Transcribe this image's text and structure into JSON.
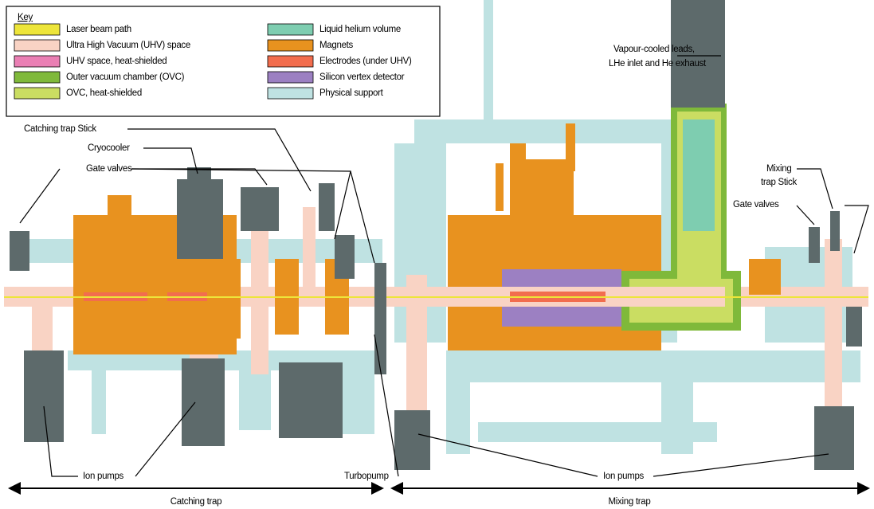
{
  "key": {
    "title": "Key",
    "items": [
      {
        "label": "Laser beam path",
        "color": "#ede53a"
      },
      {
        "label": "Ultra High Vacuum (UHV) space",
        "color": "#f9d3c4"
      },
      {
        "label": "UHV space, heat-shielded",
        "color": "#ea7fb4"
      },
      {
        "label": "Outer vacuum chamber (OVC)",
        "color": "#7fb93a"
      },
      {
        "label": "OVC, heat-shielded",
        "color": "#cadd62"
      },
      {
        "label": "Liquid helium volume",
        "color": "#7ecdb0"
      },
      {
        "label": "Magnets",
        "color": "#e8921f"
      },
      {
        "label": "Electrodes (under UHV)",
        "color": "#f26d4e"
      },
      {
        "label": "Silicon vertex detector",
        "color": "#9c80c2"
      },
      {
        "label": "Physical support",
        "color": "#bfe2e2"
      }
    ]
  },
  "labels": {
    "vapour_leads": [
      "Vapour-cooled leads,",
      "LHe inlet and He exhaust"
    ],
    "catching_stick": "Catching trap Stick",
    "cryocooler": "Cryocooler",
    "gate_valves_left": "Gate valves",
    "mixing_stick": [
      "Mixing",
      "trap Stick"
    ],
    "gate_valves_right": "Gate valves",
    "ion_pumps_left": "Ion pumps",
    "turbopump": "Turbopump",
    "ion_pumps_right": "Ion pumps"
  },
  "sections": {
    "catching": "Catching trap",
    "mixing": "Mixing trap"
  }
}
